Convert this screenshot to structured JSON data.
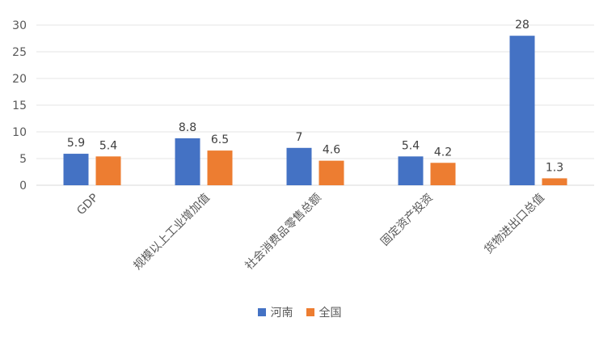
{
  "chart_data": {
    "type": "bar",
    "title": "",
    "xlabel": "",
    "ylabel": "",
    "categories": [
      "GDP",
      "规模以上工业增加值",
      "社会消费品零售总额",
      "固定资产投资",
      "货物进出口总值"
    ],
    "series": [
      {
        "name": "河南",
        "color": "#4472C4",
        "values": [
          5.9,
          8.8,
          7,
          5.4,
          28
        ]
      },
      {
        "name": "全国",
        "color": "#ED7D31",
        "values": [
          5.4,
          6.5,
          4.6,
          4.2,
          1.3
        ]
      }
    ],
    "ylim": [
      0,
      30
    ],
    "yticks": [
      0,
      5,
      10,
      15,
      20,
      25,
      30
    ],
    "grid": true,
    "legend": "bottom"
  }
}
